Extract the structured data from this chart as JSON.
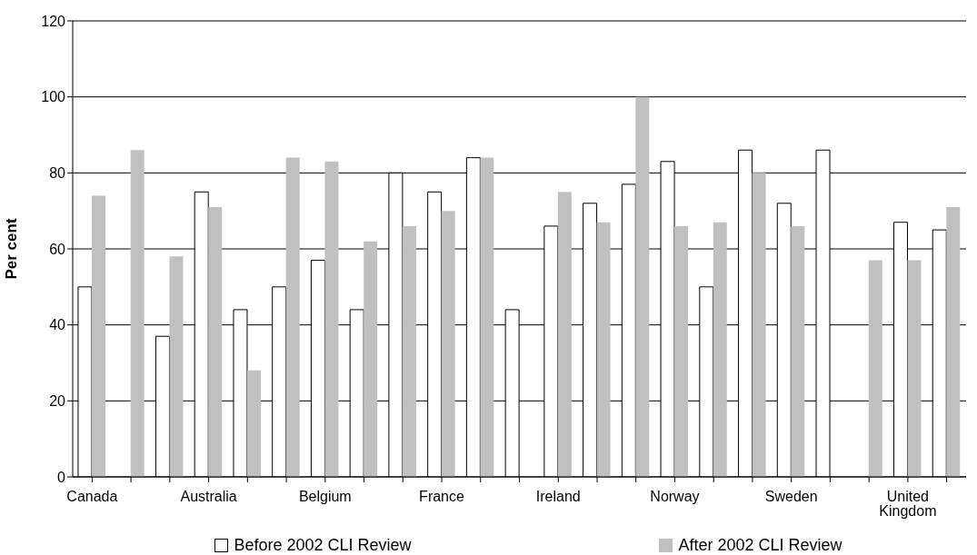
{
  "chart_data": {
    "type": "bar",
    "ylabel": "Per cent",
    "categories": [
      "Canada",
      null,
      null,
      "Australia",
      null,
      null,
      "Belgium",
      null,
      null,
      "France",
      null,
      null,
      "Ireland",
      null,
      null,
      "Norway",
      null,
      null,
      "Sweden",
      null,
      null,
      "United Kingdom",
      null
    ],
    "series": [
      {
        "name": "Before 2002 CLI Review",
        "color": "#ffffff",
        "values": [
          50,
          null,
          37,
          75,
          44,
          50,
          57,
          44,
          80,
          75,
          84,
          44,
          66,
          72,
          77,
          83,
          50,
          86,
          72,
          86,
          null,
          67,
          65
        ]
      },
      {
        "name": "After 2002 CLI Review",
        "color": "#c0c0c0",
        "values": [
          74,
          86,
          58,
          71,
          28,
          84,
          83,
          62,
          66,
          70,
          84,
          null,
          75,
          67,
          100,
          66,
          67,
          80,
          66,
          null,
          57,
          57,
          71
        ]
      }
    ],
    "ylim": [
      0,
      120
    ],
    "yticks": [
      0,
      20,
      40,
      60,
      80,
      100,
      120
    ],
    "grid": "y",
    "legend": "bottom"
  }
}
